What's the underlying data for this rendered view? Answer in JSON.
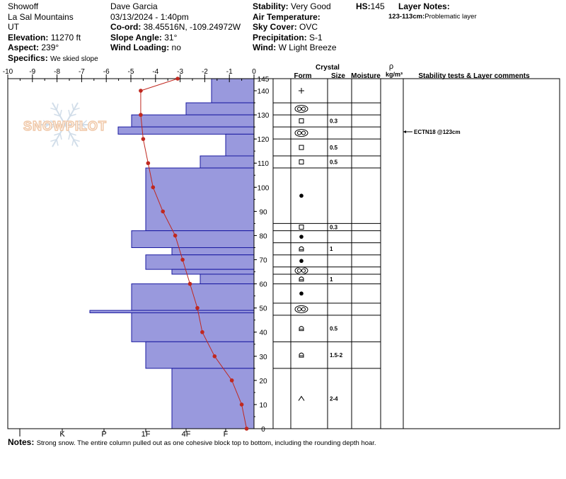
{
  "header": {
    "location_name": "Showoff",
    "range": "La Sal Mountains",
    "state": "UT",
    "elevation_label": "Elevation:",
    "elevation": "11270 ft",
    "aspect_label": "Aspect:",
    "aspect": "239°",
    "specifics_label": "Specifics:",
    "specifics": "We skied slope",
    "observer": "Dave Garcia",
    "datetime": "03/13/2024 - 1:40pm",
    "coord_label": "Co-ord:",
    "coord": "38.45516N, -109.24972W",
    "slope_label": "Slope Angle:",
    "slope": "31°",
    "wind_loading_label": "Wind Loading:",
    "wind_loading": "no",
    "stability_label": "Stability:",
    "stability": "Very Good",
    "air_temp_label": "Air Temperature:",
    "air_temp": "",
    "sky_label": "Sky Cover:",
    "sky": "OVC",
    "precip_label": "Precipitation:",
    "precip": "S-1",
    "wind_label": "Wind:",
    "wind": "W Light Breeze",
    "hs_label": "HS:",
    "hs": "145",
    "layer_notes_label": "Layer Notes:",
    "layer_note_depth": "123-113cm:",
    "layer_note_text": "Problematic layer"
  },
  "watermark": {
    "text": "SNOWPILOT",
    "icon": "snowflake-icon"
  },
  "table": {
    "headers": {
      "crystal": "Crystal",
      "form": "Form",
      "size": "Size",
      "moisture": "Moisture",
      "rho": "ρ",
      "density_unit": "kg/m³",
      "comments": "Stability tests & Layer comments"
    },
    "comment_entries": [
      {
        "depth": 123,
        "text": "ECTN18 @123cm"
      }
    ],
    "layers": [
      {
        "top": 145,
        "bottom": 135,
        "form": "decomposing",
        "size": ""
      },
      {
        "top": 135,
        "bottom": 130,
        "form": "graupel",
        "size": ""
      },
      {
        "top": 130,
        "bottom": 125,
        "form": "faceted",
        "size": "0.3"
      },
      {
        "top": 125,
        "bottom": 120,
        "form": "graupel",
        "size": ""
      },
      {
        "top": 120,
        "bottom": 113,
        "form": "faceted",
        "size": "0.5"
      },
      {
        "top": 113,
        "bottom": 108,
        "form": "faceted",
        "size": "0.5"
      },
      {
        "top": 108,
        "bottom": 85,
        "form": "rounded",
        "size": ""
      },
      {
        "top": 85,
        "bottom": 82,
        "form": "faceted",
        "size": "0.3"
      },
      {
        "top": 82,
        "bottom": 77,
        "form": "rounded",
        "size": ""
      },
      {
        "top": 77,
        "bottom": 72,
        "form": "faceted-round",
        "size": "1"
      },
      {
        "top": 72,
        "bottom": 67,
        "form": "rounded",
        "size": ""
      },
      {
        "top": 67,
        "bottom": 64,
        "form": "graupel",
        "size": ""
      },
      {
        "top": 64,
        "bottom": 60,
        "form": "faceted-round",
        "size": "1"
      },
      {
        "top": 60,
        "bottom": 52,
        "form": "rounded",
        "size": ""
      },
      {
        "top": 52,
        "bottom": 47,
        "form": "graupel",
        "size": ""
      },
      {
        "top": 47,
        "bottom": 36,
        "form": "faceted-round",
        "size": "0.5"
      },
      {
        "top": 36,
        "bottom": 25,
        "form": "faceted-round",
        "size": "1.5-2"
      },
      {
        "top": 25,
        "bottom": 0,
        "form": "depth-hoar",
        "size": "2-4"
      }
    ]
  },
  "chart_data": {
    "type": "bar",
    "temp_axis": {
      "ticks": [
        "-10",
        "-9",
        "-8",
        "-7",
        "-6",
        "-5",
        "-4",
        "-3",
        "-2",
        "-1",
        "0"
      ],
      "min": -10,
      "max": 0
    },
    "hardness_axis": {
      "ticks": [
        "I",
        "K",
        "P",
        "1F",
        "4F",
        "F"
      ]
    },
    "depth_axis": {
      "ticks": [
        "0",
        "10",
        "20",
        "30",
        "40",
        "50",
        "60",
        "70",
        "80",
        "90",
        "100",
        "110",
        "120",
        "130",
        "140",
        "145"
      ],
      "min": 0,
      "max": 145
    },
    "hardness_profile": [
      {
        "top": 145,
        "bottom": 135,
        "hardness": "F+"
      },
      {
        "top": 135,
        "bottom": 130,
        "hardness": "4F"
      },
      {
        "top": 130,
        "bottom": 125,
        "hardness": "1F+"
      },
      {
        "top": 125,
        "bottom": 122,
        "hardness": "P-"
      },
      {
        "top": 122,
        "bottom": 113,
        "hardness": "F"
      },
      {
        "top": 113,
        "bottom": 108,
        "hardness": "4F-"
      },
      {
        "top": 108,
        "bottom": 82,
        "hardness": "1F"
      },
      {
        "top": 82,
        "bottom": 75,
        "hardness": "1F+"
      },
      {
        "top": 75,
        "bottom": 72,
        "hardness": "4F+"
      },
      {
        "top": 72,
        "bottom": 66,
        "hardness": "1F"
      },
      {
        "top": 66,
        "bottom": 64,
        "hardness": "4F+"
      },
      {
        "top": 64,
        "bottom": 60,
        "hardness": "4F-"
      },
      {
        "top": 60,
        "bottom": 49,
        "hardness": "1F+"
      },
      {
        "top": 49,
        "bottom": 48,
        "hardness": "P+"
      },
      {
        "top": 48,
        "bottom": 36,
        "hardness": "1F+"
      },
      {
        "top": 36,
        "bottom": 25,
        "hardness": "1F"
      },
      {
        "top": 25,
        "bottom": 0,
        "hardness": "4F+"
      }
    ],
    "temperature_profile": [
      {
        "depth": 145,
        "temp": -3.1
      },
      {
        "depth": 140,
        "temp": -4.6
      },
      {
        "depth": 130,
        "temp": -4.6
      },
      {
        "depth": 120,
        "temp": -4.5
      },
      {
        "depth": 110,
        "temp": -4.3
      },
      {
        "depth": 100,
        "temp": -4.1
      },
      {
        "depth": 90,
        "temp": -3.7
      },
      {
        "depth": 80,
        "temp": -3.2
      },
      {
        "depth": 70,
        "temp": -2.9
      },
      {
        "depth": 60,
        "temp": -2.6
      },
      {
        "depth": 50,
        "temp": -2.3
      },
      {
        "depth": 40,
        "temp": -2.1
      },
      {
        "depth": 30,
        "temp": -1.6
      },
      {
        "depth": 20,
        "temp": -0.9
      },
      {
        "depth": 10,
        "temp": -0.5
      },
      {
        "depth": 0,
        "temp": -0.3
      }
    ],
    "colors": {
      "hardness_fill": "#9999dd",
      "hardness_stroke": "#1a1aa0",
      "temp_line": "#c0281f",
      "watermark": "#f0c8a8"
    }
  },
  "notes": {
    "label": "Notes:",
    "text": "Strong snow. The entire column pulled out as one cohesive block top to bottom, including the rounding depth hoar."
  }
}
